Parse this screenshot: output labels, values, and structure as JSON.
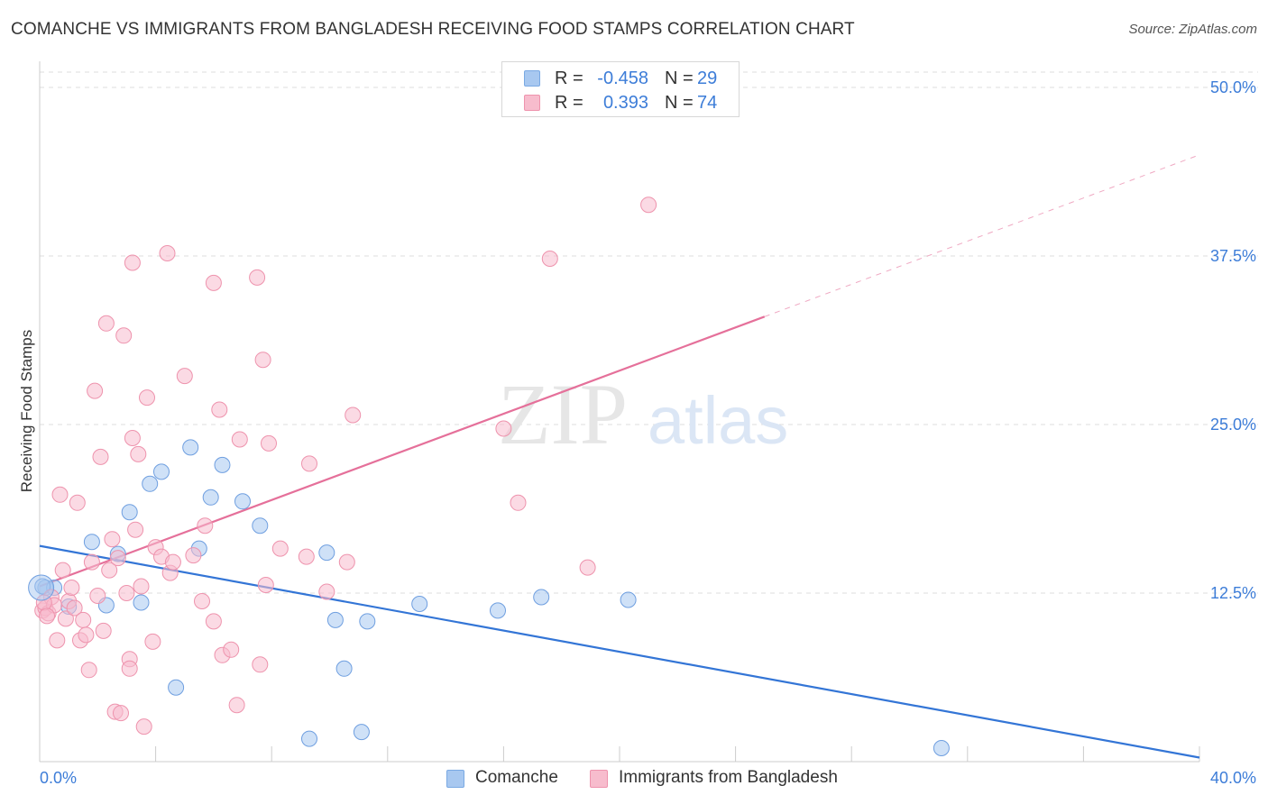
{
  "title": "COMANCHE VS IMMIGRANTS FROM BANGLADESH RECEIVING FOOD STAMPS CORRELATION CHART",
  "source": "Source: ZipAtlas.com",
  "watermark": {
    "zip": "ZIP",
    "atlas": "atlas"
  },
  "legend_top": {
    "rows": [
      {
        "label_r": "R =",
        "r": "-0.458",
        "label_n": "N =",
        "n": "29",
        "color": "#a8c8f0",
        "stroke": "#7aa9e3"
      },
      {
        "label_r": "R =",
        "r": "0.393",
        "label_n": "N =",
        "n": "74",
        "color": "#f7bccd",
        "stroke": "#ee93ad"
      }
    ]
  },
  "legend_bottom": [
    "Comanche",
    "Immigrants from Bangladesh"
  ],
  "chart_data": {
    "type": "scatter",
    "title": "COMANCHE VS IMMIGRANTS FROM BANGLADESH RECEIVING FOOD STAMPS CORRELATION CHART",
    "xlabel": "",
    "ylabel": "Receiving Food Stamps",
    "xlim": [
      0,
      40
    ],
    "ylim": [
      0,
      50
    ],
    "x_tick_labels": [
      "0.0%",
      "40.0%"
    ],
    "y_ticks": [
      12.5,
      25.0,
      37.5,
      50.0
    ],
    "y_tick_labels": [
      "12.5%",
      "25.0%",
      "37.5%",
      "50.0%"
    ],
    "grid": true,
    "legend_position": "top-center",
    "series": [
      {
        "name": "Comanche",
        "color": "#a8c8f0",
        "stroke": "#6f9fe0",
        "line_color": "#3375d6",
        "trend": {
          "x": [
            0,
            40
          ],
          "y": [
            16.0,
            0.3
          ],
          "dashed_from": null
        },
        "points": [
          [
            0.2,
            12.9
          ],
          [
            0.5,
            12.9
          ],
          [
            1.0,
            11.5
          ],
          [
            1.8,
            16.3
          ],
          [
            2.3,
            11.6
          ],
          [
            2.7,
            15.4
          ],
          [
            3.1,
            18.5
          ],
          [
            3.5,
            11.8
          ],
          [
            3.8,
            20.6
          ],
          [
            4.2,
            21.5
          ],
          [
            4.7,
            5.5
          ],
          [
            5.2,
            23.3
          ],
          [
            5.5,
            15.8
          ],
          [
            5.9,
            19.6
          ],
          [
            6.3,
            22.0
          ],
          [
            7.0,
            19.3
          ],
          [
            7.6,
            17.5
          ],
          [
            9.3,
            1.7
          ],
          [
            9.9,
            15.5
          ],
          [
            10.2,
            10.5
          ],
          [
            10.5,
            6.9
          ],
          [
            11.1,
            2.2
          ],
          [
            11.3,
            10.4
          ],
          [
            13.1,
            11.7
          ],
          [
            15.8,
            11.2
          ],
          [
            17.3,
            12.2
          ],
          [
            20.3,
            12.0
          ],
          [
            31.1,
            1.0
          ],
          [
            0.1,
            13.0
          ]
        ]
      },
      {
        "name": "Immigrants from Bangladesh",
        "color": "#f7bccd",
        "stroke": "#ee93ad",
        "line_color": "#e5709a",
        "trend": {
          "x": [
            0,
            40
          ],
          "y": [
            13.0,
            45.0
          ],
          "dashed_from": 25.0
        },
        "points": [
          [
            0.1,
            11.2
          ],
          [
            0.2,
            11.4
          ],
          [
            0.3,
            11.0
          ],
          [
            0.4,
            12.2
          ],
          [
            0.5,
            11.6
          ],
          [
            0.6,
            9.0
          ],
          [
            0.7,
            19.8
          ],
          [
            0.8,
            14.2
          ],
          [
            0.9,
            10.6
          ],
          [
            1.0,
            11.9
          ],
          [
            1.1,
            12.9
          ],
          [
            1.2,
            11.4
          ],
          [
            1.3,
            19.2
          ],
          [
            1.4,
            9.0
          ],
          [
            1.5,
            10.5
          ],
          [
            1.6,
            9.4
          ],
          [
            1.7,
            6.8
          ],
          [
            1.8,
            14.8
          ],
          [
            1.9,
            27.5
          ],
          [
            2.0,
            12.3
          ],
          [
            2.1,
            22.6
          ],
          [
            2.2,
            9.7
          ],
          [
            2.3,
            32.5
          ],
          [
            2.4,
            14.2
          ],
          [
            2.5,
            16.5
          ],
          [
            2.6,
            3.7
          ],
          [
            2.7,
            15.1
          ],
          [
            2.8,
            3.6
          ],
          [
            2.9,
            31.6
          ],
          [
            3.0,
            12.5
          ],
          [
            3.1,
            7.6
          ],
          [
            3.1,
            6.9
          ],
          [
            3.2,
            37.0
          ],
          [
            3.2,
            24.0
          ],
          [
            3.3,
            17.2
          ],
          [
            3.4,
            22.8
          ],
          [
            3.5,
            13.0
          ],
          [
            3.6,
            2.6
          ],
          [
            3.7,
            27.0
          ],
          [
            3.9,
            8.9
          ],
          [
            4.0,
            15.9
          ],
          [
            4.2,
            15.2
          ],
          [
            4.4,
            37.7
          ],
          [
            4.5,
            14.0
          ],
          [
            4.6,
            14.8
          ],
          [
            5.0,
            28.6
          ],
          [
            5.3,
            15.3
          ],
          [
            5.6,
            11.9
          ],
          [
            5.7,
            17.5
          ],
          [
            6.0,
            10.4
          ],
          [
            6.0,
            35.5
          ],
          [
            6.2,
            26.1
          ],
          [
            6.3,
            7.9
          ],
          [
            6.6,
            8.3
          ],
          [
            6.8,
            4.2
          ],
          [
            6.9,
            23.9
          ],
          [
            7.5,
            35.9
          ],
          [
            7.6,
            7.2
          ],
          [
            7.7,
            29.8
          ],
          [
            7.8,
            13.1
          ],
          [
            7.9,
            23.6
          ],
          [
            8.3,
            15.8
          ],
          [
            9.2,
            15.2
          ],
          [
            9.3,
            22.1
          ],
          [
            9.9,
            12.6
          ],
          [
            10.6,
            14.8
          ],
          [
            10.8,
            25.7
          ],
          [
            16.0,
            24.7
          ],
          [
            16.5,
            19.2
          ],
          [
            17.6,
            37.3
          ],
          [
            18.9,
            14.4
          ],
          [
            21.0,
            41.3
          ],
          [
            0.15,
            11.8
          ],
          [
            0.25,
            10.8
          ]
        ]
      }
    ]
  }
}
